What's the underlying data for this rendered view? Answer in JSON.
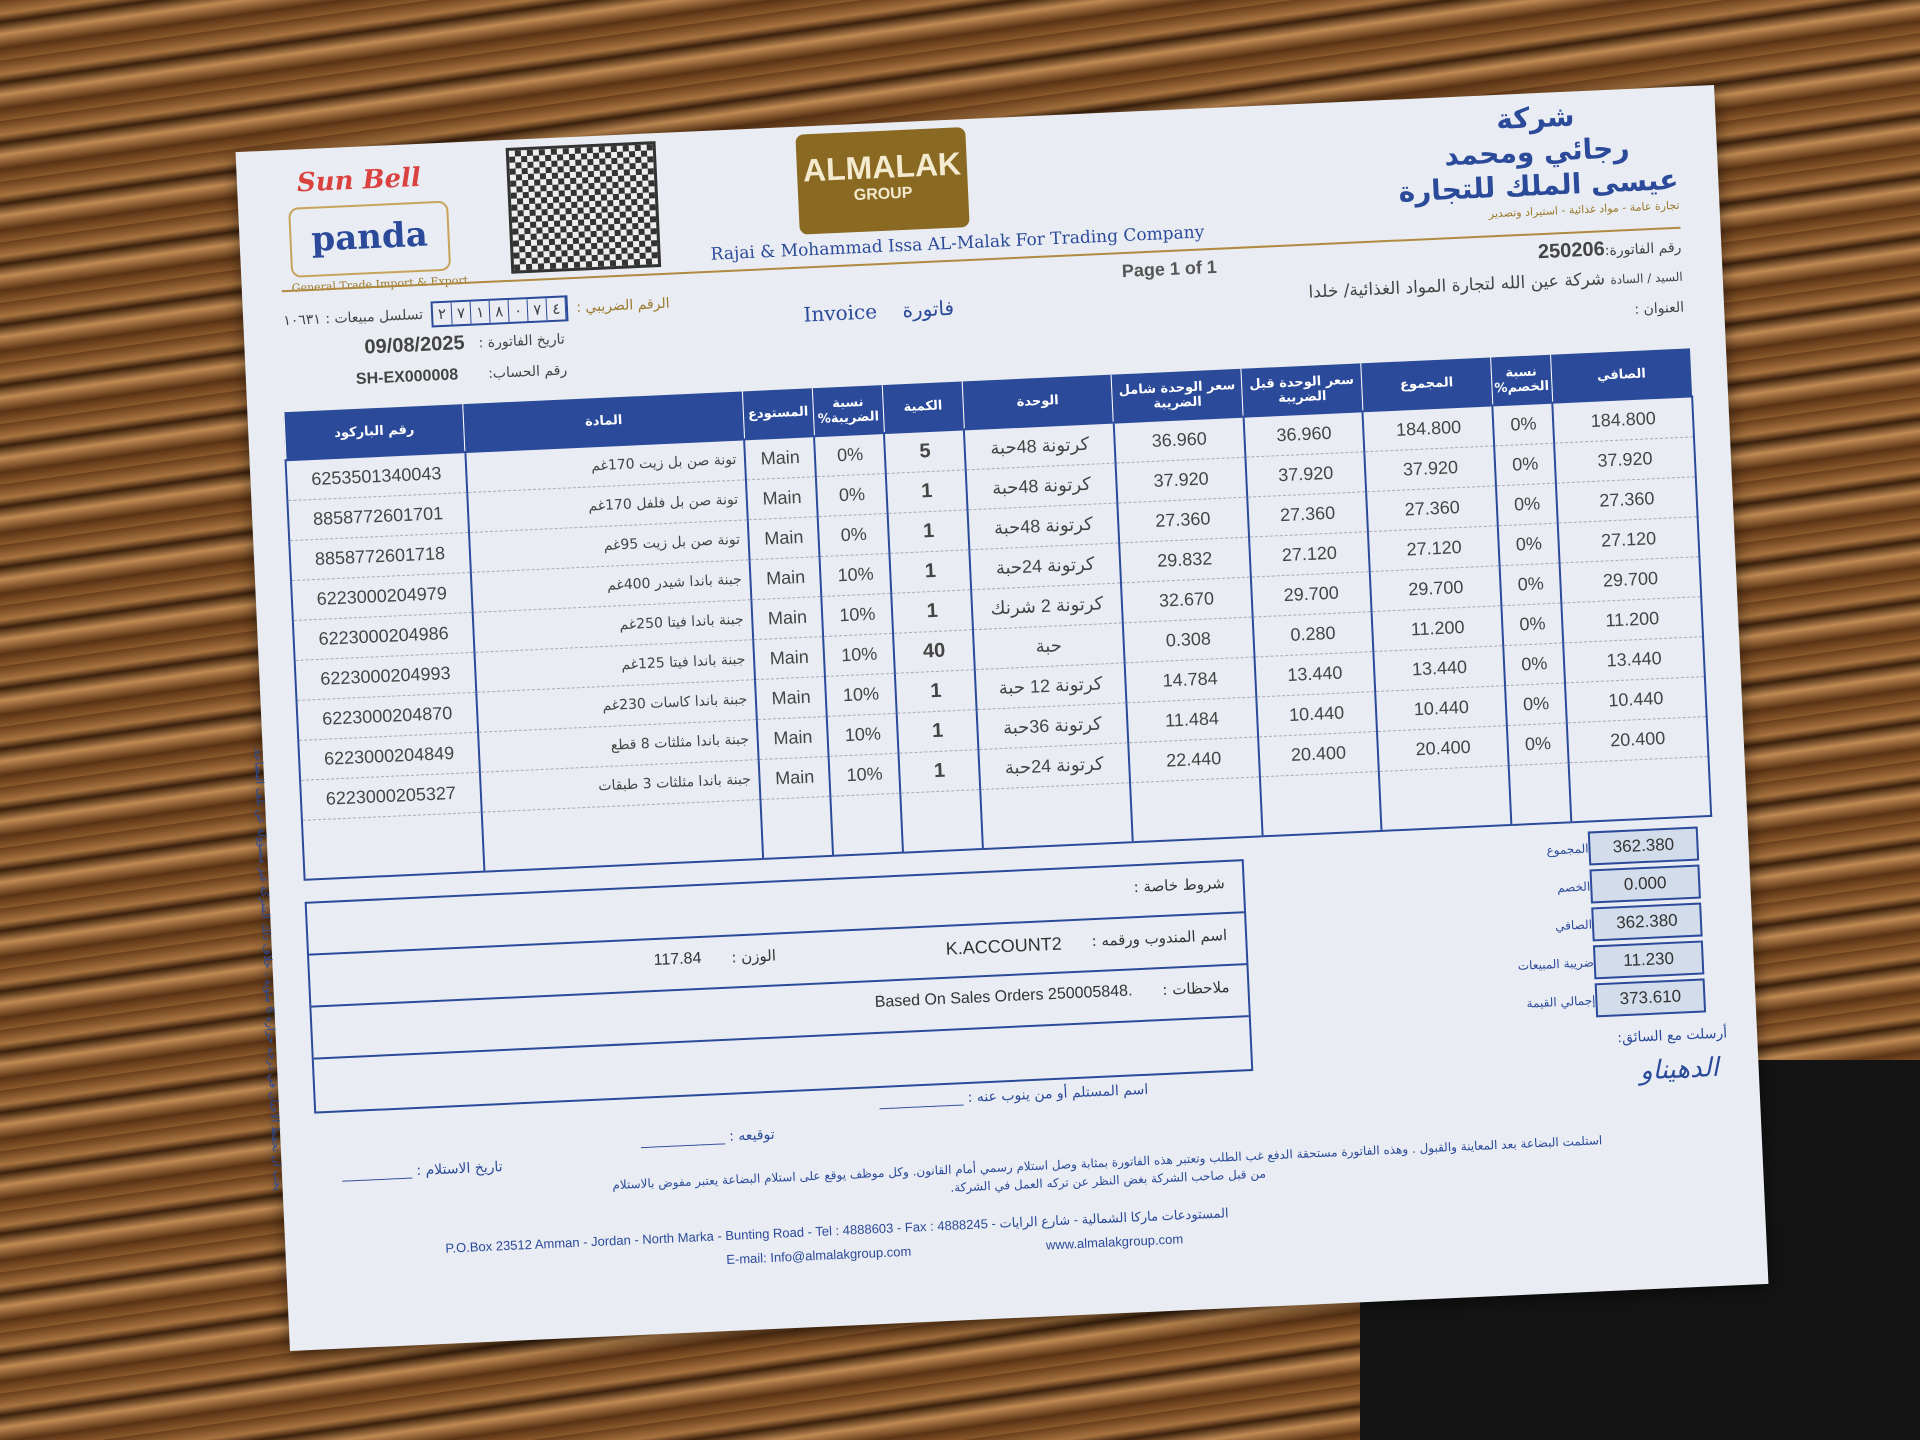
{
  "left_brand": {
    "sun_bell": "Sun Bell",
    "panda": "panda",
    "panda_sub": "General Trade   Import & Export"
  },
  "logo": {
    "name": "ALMALAK",
    "group": "GROUP",
    "english_name": "Rajai & Mohammad Issa AL-Malak For Trading Company"
  },
  "company_ar": {
    "line1": "شركة",
    "line2": "رجائي ومحمد",
    "line3": "عيسى الملك للتجارة",
    "sub": "تجارة عامة - مواد غذائية - استيراد وتصدير"
  },
  "doc": {
    "invoice_en": "Invoice",
    "invoice_ar": "فاتورة",
    "page": "Page 1 of 1"
  },
  "info": {
    "invoice_no_label": "رقم الفاتورة:",
    "invoice_no": "250206",
    "customer_label": "السيد / السادة",
    "customer": "شركة عين الله لتجارة المواد الغذائية/ خلدا",
    "address_label": "العنوان :",
    "tax_no_label": "الرقم الضريبي :",
    "tax_no_digits": [
      "٤",
      "٧",
      "٠",
      "٨",
      "١",
      "٧",
      "٢"
    ],
    "sales_seq": "تسلسل مبيعات : ١٠٦٣١",
    "date_label": "تاريخ الفاتورة :",
    "date": "09/08/2025",
    "account_label": "رقم الحساب:",
    "account": "SH-EX000008"
  },
  "table": {
    "headers": [
      "الصافي",
      "نسبة الخصم%",
      "المجموع",
      "سعر الوحدة قبل الضريبة",
      "سعر الوحدة شامل الضريبة",
      "الوحدة",
      "الكمية",
      "نسبة الضريبة%",
      "المستودع",
      "المادة",
      "رقم الباركود"
    ],
    "rows": [
      [
        "184.800",
        "0%",
        "184.800",
        "36.960",
        "36.960",
        "كرتونة 48حبة",
        "5",
        "0%",
        "Main",
        "تونة صن بل زيت 170غم",
        "6253501340043"
      ],
      [
        "37.920",
        "0%",
        "37.920",
        "37.920",
        "37.920",
        "كرتونة 48حبة",
        "1",
        "0%",
        "Main",
        "تونة صن بل فلفل 170غم",
        "8858772601701"
      ],
      [
        "27.360",
        "0%",
        "27.360",
        "27.360",
        "27.360",
        "كرتونة 48حبة",
        "1",
        "0%",
        "Main",
        "تونة صن بل زيت 95غم",
        "8858772601718"
      ],
      [
        "27.120",
        "0%",
        "27.120",
        "27.120",
        "29.832",
        "كرتونة 24حبة",
        "1",
        "10%",
        "Main",
        "جبنة باندا شيدر 400غم",
        "6223000204979"
      ],
      [
        "29.700",
        "0%",
        "29.700",
        "29.700",
        "32.670",
        "كرتونة 2 شرنك",
        "1",
        "10%",
        "Main",
        "جبنة باندا فيتا 250غم",
        "6223000204986"
      ],
      [
        "11.200",
        "0%",
        "11.200",
        "0.280",
        "0.308",
        "حبة",
        "40",
        "10%",
        "Main",
        "جبنة باندا فيتا 125غم",
        "6223000204993"
      ],
      [
        "13.440",
        "0%",
        "13.440",
        "13.440",
        "14.784",
        "كرتونة 12 حبة",
        "1",
        "10%",
        "Main",
        "جبنة باندا كاسات 230غم",
        "6223000204870"
      ],
      [
        "10.440",
        "0%",
        "10.440",
        "10.440",
        "11.484",
        "كرتونة 36حبة",
        "1",
        "10%",
        "Main",
        "جبنة باندا مثلثات 8 قطع",
        "6223000204849"
      ],
      [
        "20.400",
        "0%",
        "20.400",
        "20.400",
        "22.440",
        "كرتونة 24حبة",
        "1",
        "10%",
        "Main",
        "جبنة باندا مثلثات 3 طبقات",
        "6223000205327"
      ]
    ]
  },
  "notes": {
    "terms_label": "شروط خاصة :",
    "rep_label": "اسم المندوب ورقمه :",
    "rep": "K.ACCOUNT2",
    "weight_label": "الوزن :",
    "weight": "117.84",
    "remarks_label": "ملاحظات :",
    "remarks": "Based On Sales Orders 250005848."
  },
  "summary": [
    {
      "label": "المجموع",
      "value": "362.380"
    },
    {
      "label": "الخصم",
      "value": "0.000"
    },
    {
      "label": "الصافي",
      "value": "362.380"
    },
    {
      "label": "ضريبة المبيعات",
      "value": "11.230"
    },
    {
      "label": "إجمالي القيمة",
      "value": "373.610"
    }
  ],
  "signatures": {
    "driver": "أرسلت مع السائق:",
    "receiver": "اسم المستلم أو من ينوب عنه :",
    "signature": "توقيعه :",
    "receipt_date": "تاريخ الاستلام :",
    "handwritten": "الدهيناو"
  },
  "terms_text": "استلمت البضاعة بعد المعاينة والقبول . وهذه الفاتورة مستحقة الدفع غب الطلب وتعتبر هذه الفاتورة بمثابة وصل استلام رسمي أمام القانون. وكل موظف يوقع على استلام البضاعة يعتبر مفوض بالاستلام من قبل صاحب الشركة بغض النظر عن تركه العمل في الشركة.",
  "side_note": "يجب ان تحفظ الاجبان في درجة حرارة 6 مئوية ، خلاف ذلك الشركة غير مسؤولة عن تلف البضاعة.",
  "footer": {
    "address": "P.O.Box 23512 Amman - Jordan - North Marka - Bunting Road - Tel : 4888603 - Fax : 4888245 - المستودعات ماركا الشمالية - شارع الرايات",
    "email": "E-mail: Info@almalakgroup.com",
    "web": "www.almalakgroup.com"
  }
}
